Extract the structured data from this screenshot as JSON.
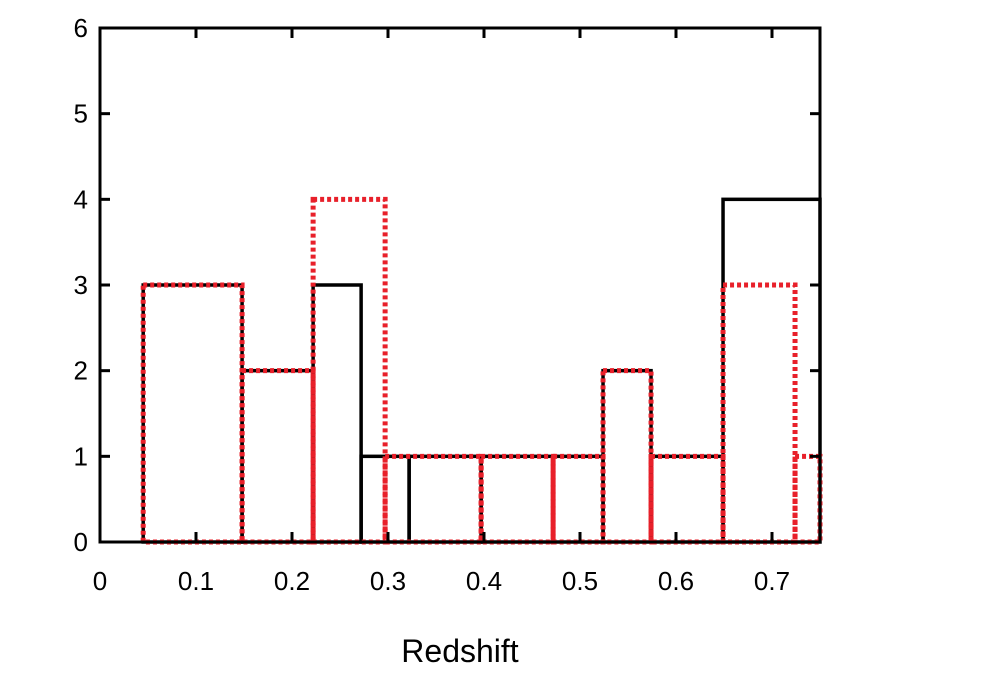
{
  "chart_data": {
    "type": "bar",
    "title": "",
    "xlabel": "Redshift",
    "ylabel": "",
    "xlim": [
      0,
      0.75
    ],
    "ylim": [
      0,
      6
    ],
    "xticks": [
      "0",
      "0.1",
      "0.2",
      "0.3",
      "0.4",
      "0.5",
      "0.6",
      "0.7"
    ],
    "yticks": [
      "0",
      "1",
      "2",
      "3",
      "4",
      "5",
      "6"
    ],
    "grid": false,
    "series": [
      {
        "style": "solid",
        "color": "#000000",
        "bins": [
          {
            "x0": 0.045,
            "x1": 0.148,
            "value": 3
          },
          {
            "x0": 0.148,
            "x1": 0.222,
            "value": 2
          },
          {
            "x0": 0.222,
            "x1": 0.272,
            "value": 3
          },
          {
            "x0": 0.272,
            "x1": 0.322,
            "value": 1
          },
          {
            "x0": 0.322,
            "x1": 0.397,
            "value": 1
          },
          {
            "x0": 0.397,
            "x1": 0.472,
            "value": 1
          },
          {
            "x0": 0.472,
            "x1": 0.524,
            "value": 1
          },
          {
            "x0": 0.524,
            "x1": 0.574,
            "value": 2
          },
          {
            "x0": 0.574,
            "x1": 0.649,
            "value": 1
          },
          {
            "x0": 0.649,
            "x1": 0.75,
            "value": 4
          }
        ]
      },
      {
        "style": "dotted",
        "color": "#e8202a",
        "bins": [
          {
            "x0": 0.045,
            "x1": 0.148,
            "value": 3
          },
          {
            "x0": 0.148,
            "x1": 0.222,
            "value": 2
          },
          {
            "x0": 0.222,
            "x1": 0.297,
            "value": 4
          },
          {
            "x0": 0.297,
            "x1": 0.397,
            "value": 1
          },
          {
            "x0": 0.397,
            "x1": 0.472,
            "value": 1
          },
          {
            "x0": 0.472,
            "x1": 0.524,
            "value": 1
          },
          {
            "x0": 0.524,
            "x1": 0.574,
            "value": 2
          },
          {
            "x0": 0.574,
            "x1": 0.649,
            "value": 1
          },
          {
            "x0": 0.649,
            "x1": 0.724,
            "value": 3
          },
          {
            "x0": 0.724,
            "x1": 0.75,
            "value": 1
          }
        ]
      }
    ]
  }
}
